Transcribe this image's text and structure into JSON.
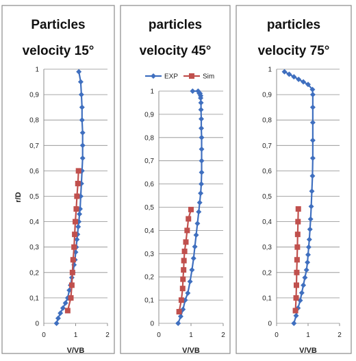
{
  "chart_data": [
    {
      "type": "line",
      "title_lines": [
        "Particles",
        "velocity 15°"
      ],
      "xlabel": "V/VB",
      "ylabel": "r/D",
      "xlim": [
        0,
        2
      ],
      "ylim": [
        0,
        1
      ],
      "xticks": [
        "0",
        "1",
        "2"
      ],
      "yticks": [
        "0",
        "0,1",
        "0,2",
        "0,3",
        "0,4",
        "0,5",
        "0,6",
        "0,7",
        "0,8",
        "0,9",
        "1"
      ],
      "grid": true,
      "legend": false,
      "series": [
        {
          "name": "EXP",
          "color": "#3f6fbf",
          "marker": "diamond",
          "x": [
            0.4,
            0.45,
            0.52,
            0.6,
            0.68,
            0.75,
            0.8,
            0.84,
            0.88,
            0.92,
            0.95,
            0.98,
            1.0,
            1.02,
            1.04,
            1.06,
            1.08,
            1.1,
            1.12,
            1.14,
            1.16,
            1.18,
            1.2,
            1.22,
            1.22,
            1.22,
            1.2,
            1.2,
            1.18,
            1.16,
            1.1
          ],
          "y": [
            0.0,
            0.02,
            0.04,
            0.06,
            0.08,
            0.1,
            0.13,
            0.15,
            0.18,
            0.2,
            0.23,
            0.25,
            0.28,
            0.3,
            0.33,
            0.35,
            0.38,
            0.4,
            0.43,
            0.45,
            0.5,
            0.55,
            0.6,
            0.65,
            0.7,
            0.75,
            0.8,
            0.85,
            0.9,
            0.95,
            0.99
          ]
        },
        {
          "name": "Sim",
          "color": "#c0504d",
          "marker": "square",
          "x": [
            0.75,
            0.85,
            0.88,
            0.9,
            0.92,
            0.95,
            0.97,
            0.99,
            1.02,
            1.04,
            1.07,
            1.09
          ],
          "y": [
            0.05,
            0.1,
            0.15,
            0.2,
            0.25,
            0.3,
            0.35,
            0.4,
            0.45,
            0.5,
            0.55,
            0.6
          ]
        }
      ]
    },
    {
      "type": "line",
      "title_lines": [
        "particles",
        "velocity 45°"
      ],
      "xlabel": "V/VB",
      "ylabel": "",
      "xlim": [
        0,
        2
      ],
      "ylim": [
        0,
        1
      ],
      "xticks": [
        "0",
        "1",
        "2"
      ],
      "yticks": [
        "0",
        "0,1",
        "0,2",
        "0,3",
        "0,4",
        "0,5",
        "0,6",
        "0,7",
        "0,8",
        "0,9",
        "1"
      ],
      "grid": true,
      "legend": true,
      "legend_position": "top",
      "series": [
        {
          "name": "EXP",
          "color": "#3f6fbf",
          "marker": "diamond",
          "x": [
            0.6,
            0.68,
            0.75,
            0.82,
            0.9,
            0.97,
            1.03,
            1.08,
            1.12,
            1.16,
            1.2,
            1.24,
            1.27,
            1.3,
            1.32,
            1.33,
            1.33,
            1.33,
            1.33,
            1.32,
            1.32,
            1.31,
            1.31,
            1.3,
            1.3,
            1.28,
            1.26,
            1.22,
            1.05
          ],
          "y": [
            0.0,
            0.03,
            0.06,
            0.1,
            0.13,
            0.18,
            0.23,
            0.28,
            0.33,
            0.38,
            0.43,
            0.48,
            0.52,
            0.56,
            0.6,
            0.65,
            0.7,
            0.75,
            0.8,
            0.84,
            0.88,
            0.92,
            0.95,
            0.97,
            0.98,
            0.99,
            0.99,
            1.0,
            1.0
          ]
        },
        {
          "name": "Sim",
          "color": "#c0504d",
          "marker": "square",
          "x": [
            0.63,
            0.7,
            0.74,
            0.75,
            0.77,
            0.78,
            0.8,
            0.84,
            0.88,
            0.92,
            1.0
          ],
          "y": [
            0.05,
            0.1,
            0.15,
            0.19,
            0.23,
            0.27,
            0.31,
            0.35,
            0.4,
            0.45,
            0.49
          ]
        }
      ]
    },
    {
      "type": "line",
      "title_lines": [
        "particles",
        "velocity 75°"
      ],
      "xlabel": "V/VB",
      "ylabel": "",
      "xlim": [
        0,
        2
      ],
      "ylim": [
        0,
        1
      ],
      "xticks": [
        "0",
        "1",
        "2"
      ],
      "yticks": [
        "0",
        "0,1",
        "0,2",
        "0,3",
        "0,4",
        "0,5",
        "0,6",
        "0,7",
        "0,8",
        "0,9",
        "1"
      ],
      "grid": true,
      "legend": false,
      "series": [
        {
          "name": "EXP",
          "color": "#3f6fbf",
          "marker": "diamond",
          "x": [
            0.55,
            0.62,
            0.68,
            0.75,
            0.8,
            0.85,
            0.9,
            0.95,
            0.98,
            1.0,
            1.02,
            1.04,
            1.06,
            1.08,
            1.1,
            1.12,
            1.14,
            1.15,
            1.15,
            1.15,
            1.15,
            1.15,
            1.14,
            1.0,
            0.85,
            0.7,
            0.55,
            0.4,
            0.25
          ],
          "y": [
            0.0,
            0.03,
            0.06,
            0.09,
            0.12,
            0.15,
            0.18,
            0.21,
            0.24,
            0.27,
            0.3,
            0.33,
            0.37,
            0.41,
            0.46,
            0.52,
            0.58,
            0.65,
            0.72,
            0.79,
            0.85,
            0.9,
            0.92,
            0.94,
            0.95,
            0.96,
            0.97,
            0.98,
            0.99
          ]
        },
        {
          "name": "Sim",
          "color": "#c0504d",
          "marker": "square",
          "x": [
            0.6,
            0.62,
            0.63,
            0.64,
            0.65,
            0.66,
            0.67,
            0.68,
            0.69
          ],
          "y": [
            0.05,
            0.1,
            0.15,
            0.2,
            0.25,
            0.3,
            0.35,
            0.4,
            0.45
          ]
        }
      ]
    }
  ]
}
